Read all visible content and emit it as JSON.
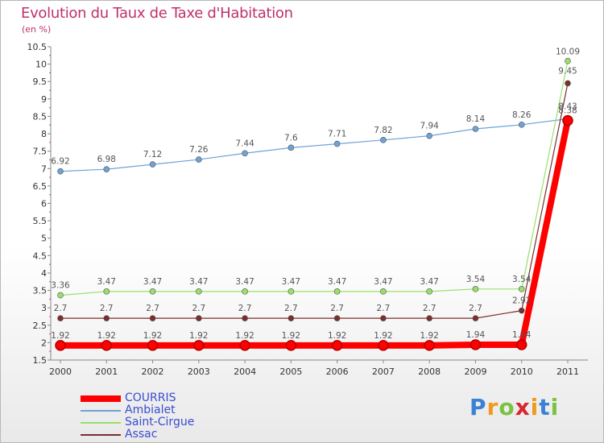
{
  "title": "Evolution du Taux de Taxe d'Habitation",
  "unit": "(en %)",
  "logo": {
    "letters": [
      "P",
      "r",
      "o",
      "x",
      "i",
      "t",
      "i"
    ],
    "colors": [
      "#3b82d6",
      "#f09a1c",
      "#7cc242",
      "#d7262f",
      "#f09a1c",
      "#3b82d6",
      "#7cc242"
    ]
  },
  "chart_data": {
    "type": "line",
    "title": "Evolution du Taux de Taxe d'Habitation",
    "ylabel": "(en %)",
    "x": [
      "2000",
      "2001",
      "2002",
      "2003",
      "2004",
      "2005",
      "2006",
      "2007",
      "2008",
      "2009",
      "2010",
      "2011"
    ],
    "ylim": [
      1.5,
      10.5
    ],
    "yticks": [
      "1.5",
      "2",
      "2.5",
      "3",
      "3.5",
      "4",
      "4.5",
      "5",
      "5.5",
      "6",
      "6.5",
      "7",
      "7.5",
      "8",
      "8.5",
      "9",
      "9.5",
      "10",
      "10.5"
    ],
    "grid": false,
    "legend_position": "bottom-left",
    "series": [
      {
        "name": "COURRIS",
        "color": "#ff0000",
        "values": [
          1.92,
          1.92,
          1.92,
          1.92,
          1.92,
          1.92,
          1.92,
          1.92,
          1.92,
          1.94,
          1.94,
          8.38
        ],
        "labels": [
          "1.92",
          "1.92",
          "1.92",
          "1.92",
          "1.92",
          "1.92",
          "1.92",
          "1.92",
          "1.92",
          "1.94",
          "1.94",
          "8.38"
        ]
      },
      {
        "name": "Ambialet",
        "color": "#6fa3d6",
        "values": [
          6.92,
          6.98,
          7.12,
          7.26,
          7.44,
          7.6,
          7.71,
          7.82,
          7.94,
          8.14,
          8.26,
          8.43
        ],
        "labels": [
          "6.92",
          "6.98",
          "7.12",
          "7.26",
          "7.44",
          "7.6",
          "7.71",
          "7.82",
          "7.94",
          "8.14",
          "8.26",
          "8.43"
        ]
      },
      {
        "name": "Saint-Cirgue",
        "color": "#99e06a",
        "values": [
          3.36,
          3.47,
          3.47,
          3.47,
          3.47,
          3.47,
          3.47,
          3.47,
          3.47,
          3.54,
          3.54,
          10.09
        ],
        "labels": [
          "3.36",
          "3.47",
          "3.47",
          "3.47",
          "3.47",
          "3.47",
          "3.47",
          "3.47",
          "3.47",
          "3.54",
          "3.54",
          "10.09"
        ]
      },
      {
        "name": "Assac",
        "color": "#7a2e2e",
        "values": [
          2.7,
          2.7,
          2.7,
          2.7,
          2.7,
          2.7,
          2.7,
          2.7,
          2.7,
          2.7,
          2.92,
          9.45
        ],
        "labels": [
          "2.7",
          "2.7",
          "2.7",
          "2.7",
          "2.7",
          "2.7",
          "2.7",
          "2.7",
          "2.7",
          "2.7",
          "2.92",
          "9.45"
        ]
      }
    ]
  }
}
